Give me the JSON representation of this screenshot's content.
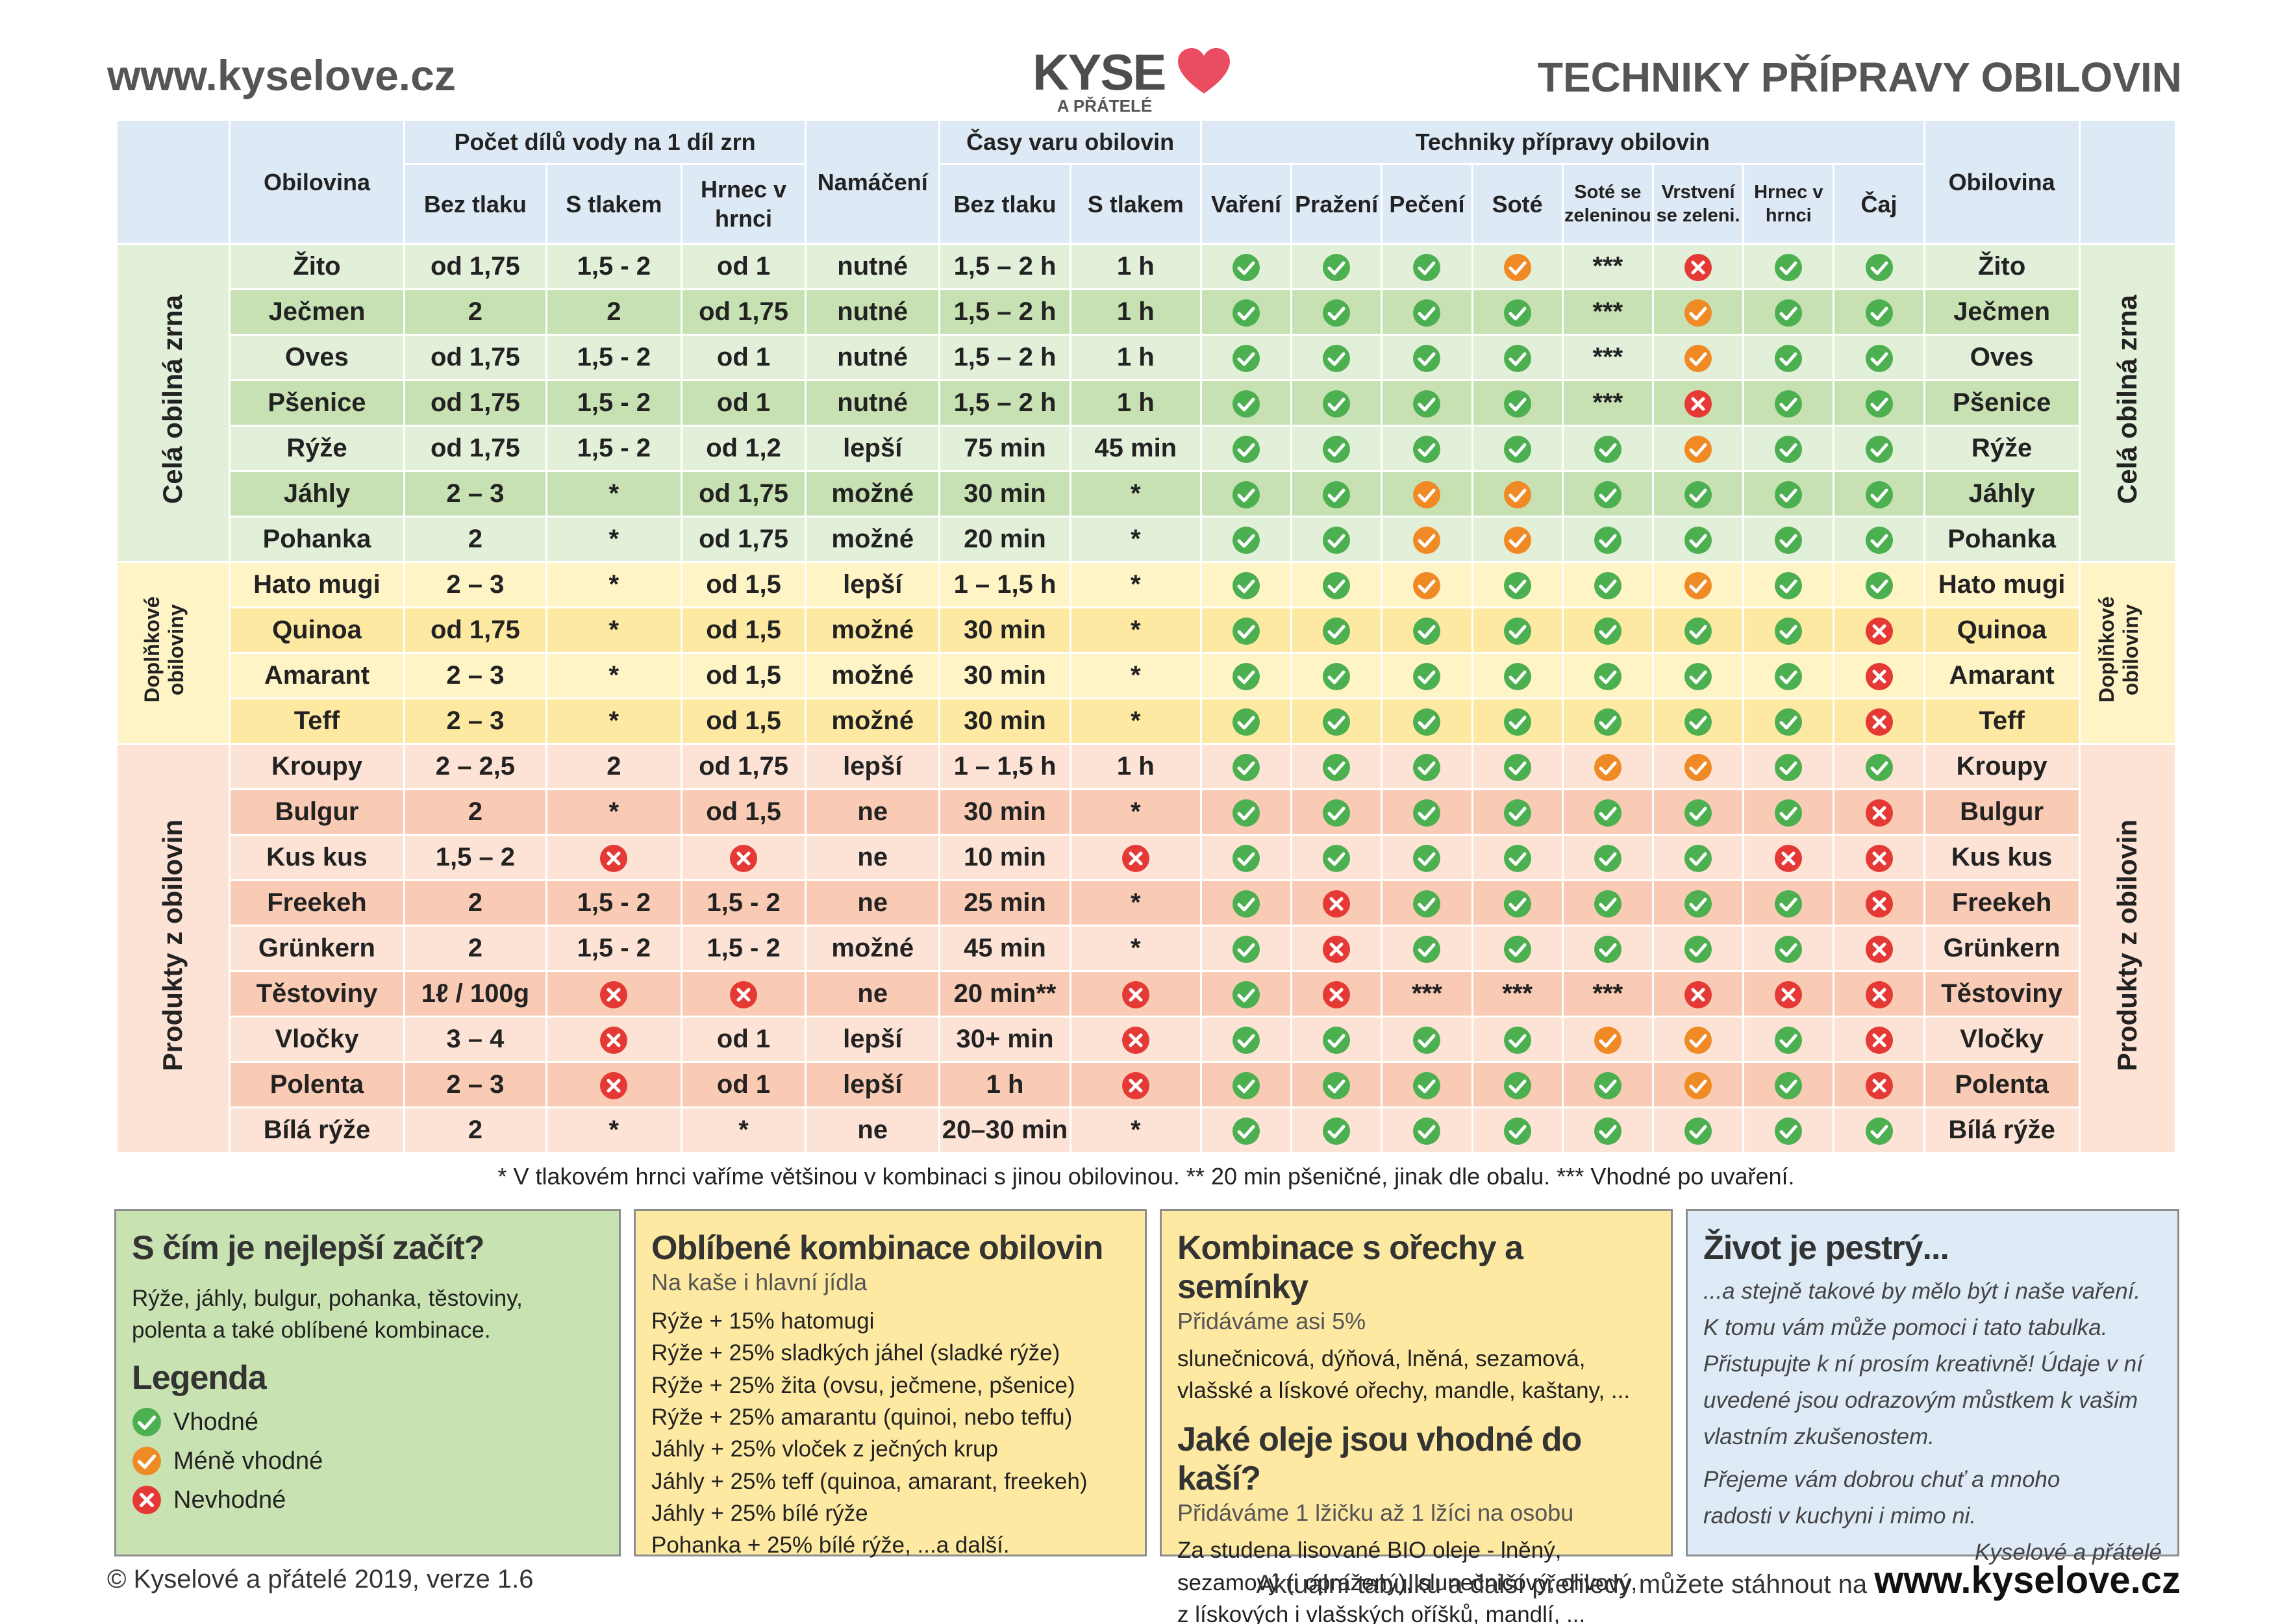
{
  "header": {
    "site": "www.kyselove.cz",
    "logo_main": "KYSE",
    "logo_sub": "A PŘÁTELÉ",
    "title": "TECHNIKY PŘÍPRAVY OBILOVIN"
  },
  "table": {
    "col_obilovina": "Obilovina",
    "group_water": "Počet dílů vody na 1 díl zrn",
    "group_soak": "Namáčení",
    "group_time": "Časy varu obilovin",
    "group_tech": "Techniky přípravy obilovin",
    "sub_bez": "Bez tlaku",
    "sub_s": "S tlakem",
    "sub_hrnec": "Hrnec v hrnci",
    "sub_time_bez": "Bez tlaku",
    "sub_time_s": "S tlakem",
    "tech": [
      "Vaření",
      "Pražení",
      "Pečení",
      "Soté",
      "Soté se zeleninou",
      "Vrstvení se zeleni.",
      "Hrnec v hrnci",
      "Čaj"
    ],
    "sections": [
      {
        "name": "Celá obilná zrna",
        "theme": "g",
        "rows": [
          {
            "name": "Žito",
            "bez": "od 1,75",
            "s": "1,5 - 2",
            "hrnec": "od 1",
            "soak": "nutné",
            "tb": "1,5 – 2 h",
            "ts": "1 h",
            "t": [
              "g",
              "g",
              "g",
              "o",
              "***",
              "r",
              "g",
              "g"
            ]
          },
          {
            "name": "Ječmen",
            "bez": "2",
            "s": "2",
            "hrnec": "od 1,75",
            "soak": "nutné",
            "tb": "1,5 – 2 h",
            "ts": "1 h",
            "t": [
              "g",
              "g",
              "g",
              "g",
              "***",
              "o",
              "g",
              "g"
            ]
          },
          {
            "name": "Oves",
            "bez": "od 1,75",
            "s": "1,5 - 2",
            "hrnec": "od 1",
            "soak": "nutné",
            "tb": "1,5 – 2 h",
            "ts": "1 h",
            "t": [
              "g",
              "g",
              "g",
              "g",
              "***",
              "o",
              "g",
              "g"
            ]
          },
          {
            "name": "Pšenice",
            "bez": "od 1,75",
            "s": "1,5 - 2",
            "hrnec": "od 1",
            "soak": "nutné",
            "tb": "1,5 – 2 h",
            "ts": "1 h",
            "t": [
              "g",
              "g",
              "g",
              "g",
              "***",
              "r",
              "g",
              "g"
            ]
          },
          {
            "name": "Rýže",
            "bez": "od 1,75",
            "s": "1,5 - 2",
            "hrnec": "od 1,2",
            "soak": "lepší",
            "tb": "75 min",
            "ts": "45 min",
            "t": [
              "g",
              "g",
              "g",
              "g",
              "g",
              "o",
              "g",
              "g"
            ]
          },
          {
            "name": "Jáhly",
            "bez": "2 – 3",
            "s": "*",
            "hrnec": "od 1,75",
            "soak": "možné",
            "tb": "30 min",
            "ts": "*",
            "t": [
              "g",
              "g",
              "o",
              "o",
              "g",
              "g",
              "g",
              "g"
            ]
          },
          {
            "name": "Pohanka",
            "bez": "2",
            "s": "*",
            "hrnec": "od 1,75",
            "soak": "možné",
            "tb": "20 min",
            "ts": "*",
            "t": [
              "g",
              "g",
              "o",
              "o",
              "g",
              "g",
              "g",
              "g"
            ]
          }
        ]
      },
      {
        "name": "Doplňkové obiloviny",
        "theme": "y",
        "rows": [
          {
            "name": "Hato mugi",
            "bez": "2 – 3",
            "s": "*",
            "hrnec": "od 1,5",
            "soak": "lepší",
            "tb": "1 – 1,5 h",
            "ts": "*",
            "t": [
              "g",
              "g",
              "o",
              "g",
              "g",
              "o",
              "g",
              "g"
            ]
          },
          {
            "name": "Quinoa",
            "bez": "od 1,75",
            "s": "*",
            "hrnec": "od 1,5",
            "soak": "možné",
            "tb": "30 min",
            "ts": "*",
            "t": [
              "g",
              "g",
              "g",
              "g",
              "g",
              "g",
              "g",
              "r"
            ]
          },
          {
            "name": "Amarant",
            "bez": "2 – 3",
            "s": "*",
            "hrnec": "od 1,5",
            "soak": "možné",
            "tb": "30 min",
            "ts": "*",
            "t": [
              "g",
              "g",
              "g",
              "g",
              "g",
              "g",
              "g",
              "r"
            ]
          },
          {
            "name": "Teff",
            "bez": "2 – 3",
            "s": "*",
            "hrnec": "od 1,5",
            "soak": "možné",
            "tb": "30 min",
            "ts": "*",
            "t": [
              "g",
              "g",
              "g",
              "g",
              "g",
              "g",
              "g",
              "r"
            ]
          }
        ]
      },
      {
        "name": "Produkty z obilovin",
        "theme": "o",
        "rows": [
          {
            "name": "Kroupy",
            "bez": "2 – 2,5",
            "s": "2",
            "hrnec": "od 1,75",
            "soak": "lepší",
            "tb": "1 – 1,5 h",
            "ts": "1 h",
            "t": [
              "g",
              "g",
              "g",
              "g",
              "o",
              "o",
              "g",
              "g"
            ]
          },
          {
            "name": "Bulgur",
            "bez": "2",
            "s": "*",
            "hrnec": "od 1,5",
            "soak": "ne",
            "tb": "30 min",
            "ts": "*",
            "t": [
              "g",
              "g",
              "g",
              "g",
              "g",
              "g",
              "g",
              "r"
            ]
          },
          {
            "name": "Kus kus",
            "bez": "1,5 – 2",
            "s": "#r",
            "hrnec": "#r",
            "soak": "ne",
            "tb": "10 min",
            "ts": "#r",
            "t": [
              "g",
              "g",
              "g",
              "g",
              "g",
              "g",
              "r",
              "r"
            ]
          },
          {
            "name": "Freekeh",
            "bez": "2",
            "s": "1,5 - 2",
            "hrnec": "1,5 - 2",
            "soak": "ne",
            "tb": "25 min",
            "ts": "*",
            "t": [
              "g",
              "r",
              "g",
              "g",
              "g",
              "g",
              "g",
              "r"
            ]
          },
          {
            "name": "Grünkern",
            "bez": "2",
            "s": "1,5 - 2",
            "hrnec": "1,5 - 2",
            "soak": "možné",
            "tb": "45 min",
            "ts": "*",
            "t": [
              "g",
              "r",
              "g",
              "g",
              "g",
              "g",
              "g",
              "r"
            ]
          },
          {
            "name": "Těstoviny",
            "bez": "1ℓ / 100g",
            "s": "#r",
            "hrnec": "#r",
            "soak": "ne",
            "tb": "20 min**",
            "ts": "#r",
            "t": [
              "g",
              "r",
              "***",
              "***",
              "***",
              "r",
              "r",
              "r"
            ]
          },
          {
            "name": "Vločky",
            "bez": "3 – 4",
            "s": "#r",
            "hrnec": "od 1",
            "soak": "lepší",
            "tb": "30+ min",
            "ts": "#r",
            "t": [
              "g",
              "g",
              "g",
              "g",
              "o",
              "o",
              "g",
              "r"
            ]
          },
          {
            "name": "Polenta",
            "bez": "2 – 3",
            "s": "#r",
            "hrnec": "od 1",
            "soak": "lepší",
            "tb": "1 h",
            "ts": "#r",
            "t": [
              "g",
              "g",
              "g",
              "g",
              "g",
              "o",
              "g",
              "r"
            ]
          },
          {
            "name": "Bílá rýže",
            "bez": "2",
            "s": "*",
            "hrnec": "*",
            "soak": "ne",
            "tb": "20–30 min",
            "ts": "*",
            "t": [
              "g",
              "g",
              "g",
              "g",
              "g",
              "g",
              "g",
              "g"
            ]
          }
        ]
      }
    ]
  },
  "footnote": "* V tlakovém hrnci vaříme většinou v kombinaci s jinou obilovinou.  ** 20 min pšeničné, jinak dle obalu.   *** Vhodné po uvaření.",
  "box1": {
    "title": "S čím je nejlepší začít?",
    "lines": [
      "Rýže, jáhly, bulgur, pohanka, těstoviny,",
      "polenta a také oblíbené kombinace."
    ],
    "legend_title": "Legenda",
    "legend": [
      "Vhodné",
      "Méně vhodné",
      "Nevhodné"
    ]
  },
  "box2": {
    "title": "Oblíbené kombinace obilovin",
    "subtitle": "Na kaše i hlavní jídla",
    "lines": [
      "Rýže + 15% hatomugi",
      "Rýže + 25% sladkých jáhel (sladké rýže)",
      "Rýže + 25% žita (ovsu, ječmene, pšenice)",
      "Rýže + 25% amarantu (quinoi, nebo teffu)",
      "Jáhly + 25% vloček z ječných krup",
      "Jáhly + 25% teff (quinoa, amarant, freekeh)",
      "Jáhly + 25% bílé rýže",
      "Pohanka + 25% bílé rýže, ...a další."
    ]
  },
  "box3": {
    "title": "Kombinace s ořechy a semínky",
    "subtitle": "Přidáváme asi 5%",
    "lines": [
      "slunečnicová, dýňová, lněná, sezamová,",
      "vlašské a lískové ořechy, mandle, kaštany, ..."
    ],
    "title2": "Jaké oleje jsou vhodné do kaší?",
    "subtitle2": "Přidáváme 1 lžičku až 1 lžíci na osobu",
    "lines2": [
      "Za studena lisované BIO oleje - lněný,",
      "sezamový (i opražený), slunečnicový, olivový,",
      "z lískových i vlašských oříšků, mandlí, ..."
    ]
  },
  "box4": {
    "title": "Život je pestrý...",
    "lines": [
      "...a stejně takové by mělo být i naše vaření.",
      "K tomu vám může pomoci i tato tabulka.",
      "Přistupujte k ní prosím kreativně! Údaje v ní",
      "uvedené jsou odrazovým můstkem k vašim",
      "vlastním zkušenostem."
    ],
    "lines2": [
      "Přejeme vám dobrou chuť a mnoho",
      "radosti v kuchyni i mimo ni."
    ],
    "sign": "Kyselové a přátelé"
  },
  "footer": {
    "left": "© Kyselové a přátelé 2019, verze 1.6",
    "right": "Aktuální tabulku a další přehledy můžete stáhnout na ",
    "right_url": "www.kyselove.cz"
  },
  "colors": {
    "good": "#4caf50",
    "medium": "#f08a24",
    "bad": "#e53935"
  }
}
